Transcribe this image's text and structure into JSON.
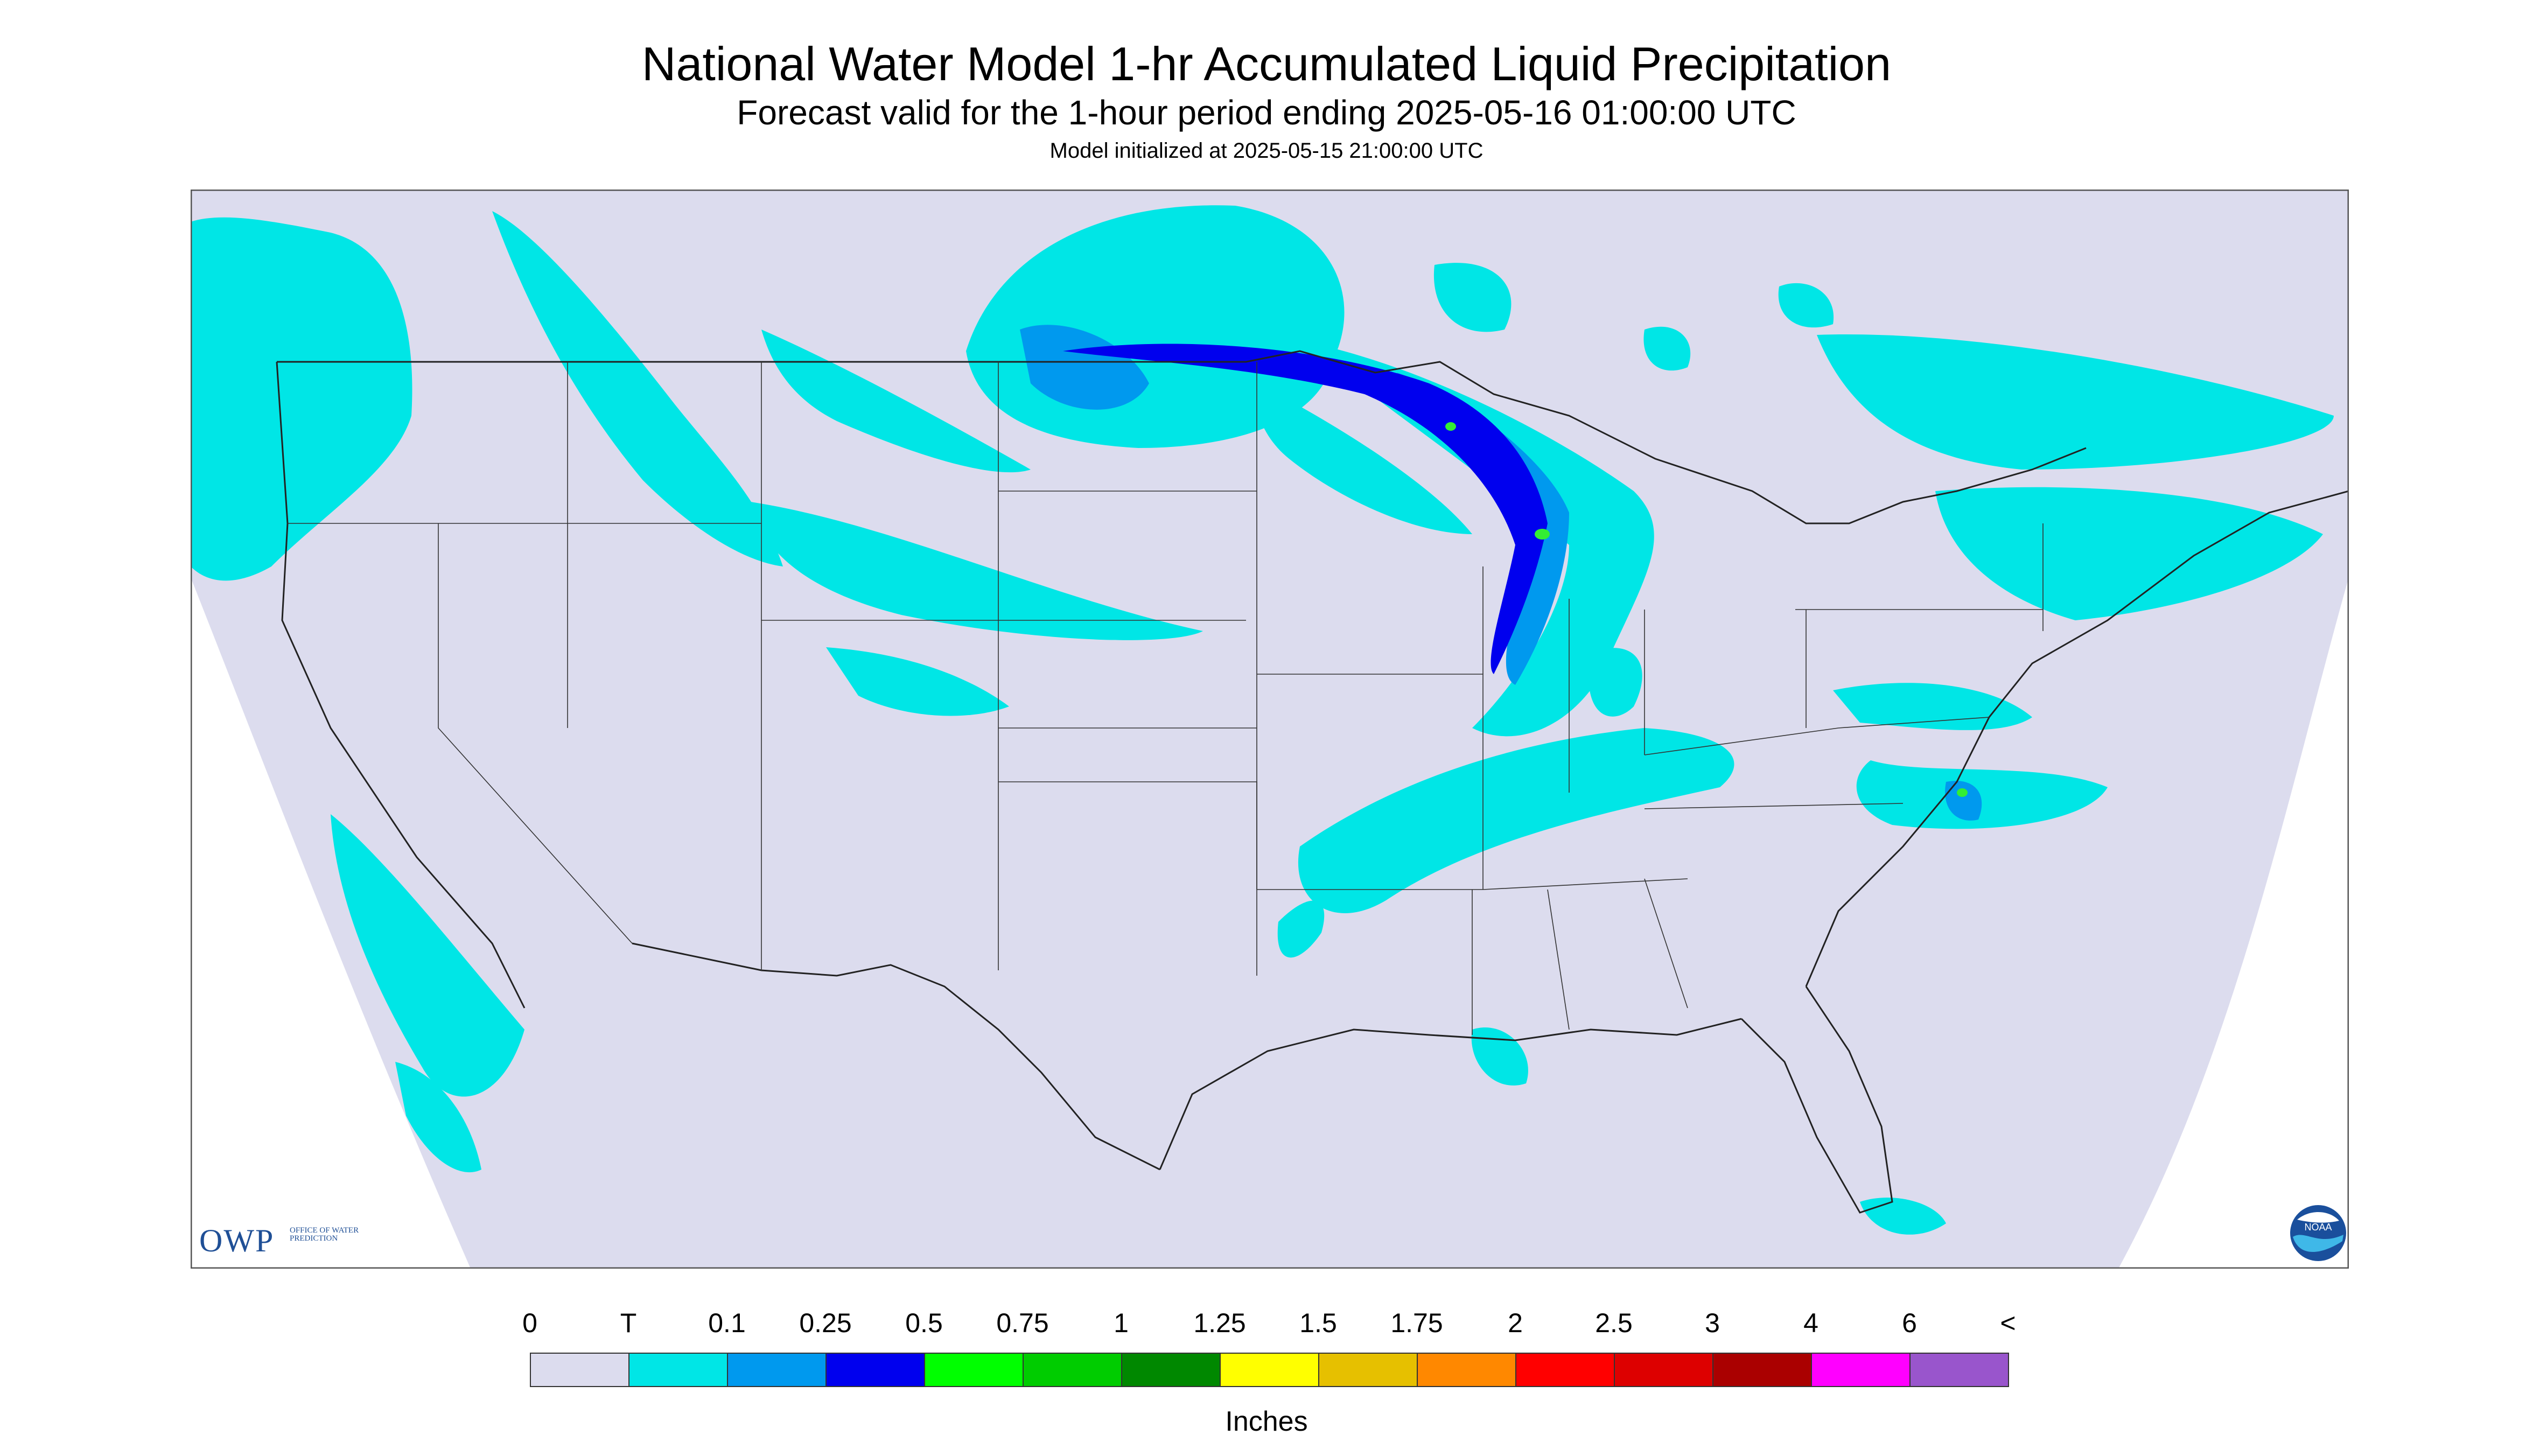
{
  "header": {
    "title": "National Water Model 1-hr Accumulated Liquid Precipitation",
    "subtitle": "Forecast valid for the 1-hour period ending 2025-05-16 01:00:00 UTC",
    "init_line": "Model initialized at 2025-05-15 21:00:00 UTC"
  },
  "map": {
    "background_color": "#ffffff",
    "domain_fill": "#dcdcee",
    "boundary_color": "#222222",
    "precip_colors": {
      "trace": "#00e6e6",
      "light": "#0099ee",
      "moderate": "#0000ee",
      "heavy": "#33ee33"
    }
  },
  "logos": {
    "owp_main": "OWP",
    "owp_sub": "OFFICE OF WATER PREDICTION",
    "noaa_text": "NOAA"
  },
  "legend": {
    "unit": "Inches",
    "ticks": [
      "0",
      "T",
      "0.1",
      "0.25",
      "0.5",
      "0.75",
      "1",
      "1.25",
      "1.5",
      "1.75",
      "2",
      "2.5",
      "3",
      "4",
      "6",
      "<"
    ],
    "colors": [
      "#dcdcee",
      "#00e6e6",
      "#0099ee",
      "#0000ee",
      "#00ff00",
      "#00cc00",
      "#008800",
      "#ffff00",
      "#e6c000",
      "#ff8800",
      "#ff0000",
      "#dd0000",
      "#aa0000",
      "#ff00ff",
      "#9955cc"
    ]
  }
}
